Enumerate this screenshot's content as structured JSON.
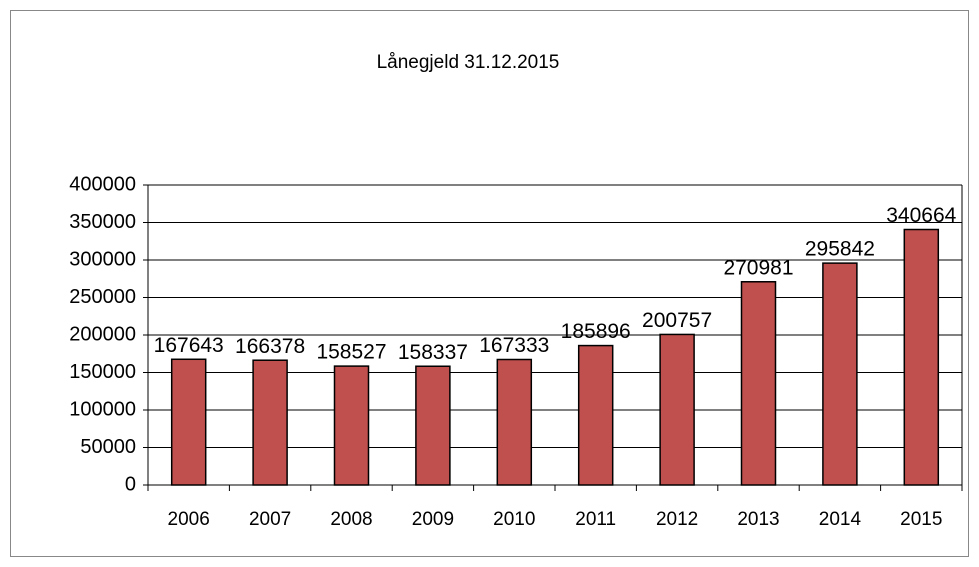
{
  "chart_data": {
    "type": "bar",
    "title": "Lånegjeld 31.12.2015",
    "categories": [
      "2006",
      "2007",
      "2008",
      "2009",
      "2010",
      "2011",
      "2012",
      "2013",
      "2014",
      "2015"
    ],
    "values": [
      167643,
      166378,
      158527,
      158337,
      167333,
      185896,
      200757,
      270981,
      295842,
      340664
    ],
    "color": "#c0504d",
    "ylim": [
      0,
      400000
    ],
    "yticks": [
      0,
      50000,
      100000,
      150000,
      200000,
      250000,
      300000,
      350000,
      400000
    ],
    "grid": true
  }
}
